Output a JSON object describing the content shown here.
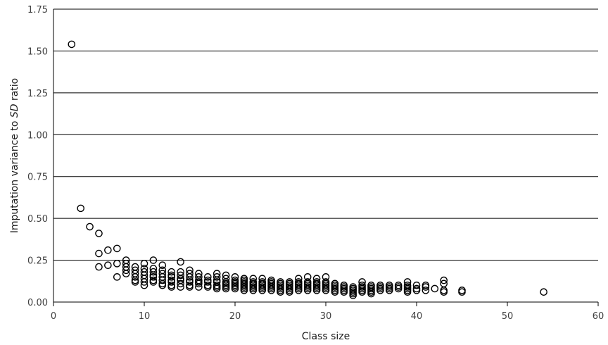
{
  "chart_data": {
    "type": "scatter",
    "title": "",
    "xlabel": "Class size",
    "ylabel_parts": [
      "Imputation variance to ",
      "SD",
      " ratio"
    ],
    "xlim": [
      0,
      60
    ],
    "ylim": [
      0,
      1.75
    ],
    "xticks": [
      0,
      10,
      20,
      30,
      40,
      50,
      60
    ],
    "yticks": [
      "0.00",
      "0.25",
      "0.50",
      "0.75",
      "1.00",
      "1.25",
      "1.50",
      "1.75"
    ],
    "grid": "horizontal",
    "legend": "none",
    "marker": "open-circle",
    "colors": {
      "marker": "#000000",
      "grid": "#000000",
      "text": "#404040"
    },
    "points": [
      [
        2,
        1.54
      ],
      [
        3,
        0.56
      ],
      [
        4,
        0.45
      ],
      [
        5,
        0.41
      ],
      [
        5,
        0.29
      ],
      [
        5,
        0.21
      ],
      [
        6,
        0.31
      ],
      [
        6,
        0.22
      ],
      [
        7,
        0.32
      ],
      [
        7,
        0.23
      ],
      [
        7,
        0.15
      ],
      [
        8,
        0.25
      ],
      [
        8,
        0.23
      ],
      [
        8,
        0.21
      ],
      [
        8,
        0.19
      ],
      [
        8,
        0.17
      ],
      [
        9,
        0.21
      ],
      [
        9,
        0.19
      ],
      [
        9,
        0.17
      ],
      [
        9,
        0.15
      ],
      [
        9,
        0.13
      ],
      [
        9,
        0.12
      ],
      [
        10,
        0.23
      ],
      [
        10,
        0.2
      ],
      [
        10,
        0.18
      ],
      [
        10,
        0.16
      ],
      [
        10,
        0.14
      ],
      [
        10,
        0.12
      ],
      [
        10,
        0.1
      ],
      [
        11,
        0.25
      ],
      [
        11,
        0.2
      ],
      [
        11,
        0.18
      ],
      [
        11,
        0.16
      ],
      [
        11,
        0.15
      ],
      [
        11,
        0.13
      ],
      [
        11,
        0.12
      ],
      [
        12,
        0.22
      ],
      [
        12,
        0.19
      ],
      [
        12,
        0.17
      ],
      [
        12,
        0.15
      ],
      [
        12,
        0.13
      ],
      [
        12,
        0.11
      ],
      [
        12,
        0.1
      ],
      [
        13,
        0.18
      ],
      [
        13,
        0.16
      ],
      [
        13,
        0.15
      ],
      [
        13,
        0.13
      ],
      [
        13,
        0.12
      ],
      [
        13,
        0.1
      ],
      [
        13,
        0.09
      ],
      [
        14,
        0.24
      ],
      [
        14,
        0.18
      ],
      [
        14,
        0.16
      ],
      [
        14,
        0.14
      ],
      [
        14,
        0.13
      ],
      [
        14,
        0.11
      ],
      [
        14,
        0.09
      ],
      [
        15,
        0.19
      ],
      [
        15,
        0.17
      ],
      [
        15,
        0.15
      ],
      [
        15,
        0.13
      ],
      [
        15,
        0.12
      ],
      [
        15,
        0.1
      ],
      [
        15,
        0.09
      ],
      [
        16,
        0.17
      ],
      [
        16,
        0.15
      ],
      [
        16,
        0.13
      ],
      [
        16,
        0.12
      ],
      [
        16,
        0.11
      ],
      [
        16,
        0.09
      ],
      [
        17,
        0.15
      ],
      [
        17,
        0.13
      ],
      [
        17,
        0.12
      ],
      [
        17,
        0.1
      ],
      [
        17,
        0.09
      ],
      [
        18,
        0.17
      ],
      [
        18,
        0.15
      ],
      [
        18,
        0.13
      ],
      [
        18,
        0.12
      ],
      [
        18,
        0.1
      ],
      [
        18,
        0.09
      ],
      [
        18,
        0.08
      ],
      [
        19,
        0.16
      ],
      [
        19,
        0.14
      ],
      [
        19,
        0.12
      ],
      [
        19,
        0.11
      ],
      [
        19,
        0.1
      ],
      [
        19,
        0.09
      ],
      [
        19,
        0.08
      ],
      [
        20,
        0.15
      ],
      [
        20,
        0.13
      ],
      [
        20,
        0.12
      ],
      [
        20,
        0.11
      ],
      [
        20,
        0.1
      ],
      [
        20,
        0.09
      ],
      [
        20,
        0.08
      ],
      [
        21,
        0.14
      ],
      [
        21,
        0.13
      ],
      [
        21,
        0.12
      ],
      [
        21,
        0.11
      ],
      [
        21,
        0.1
      ],
      [
        21,
        0.09
      ],
      [
        21,
        0.08
      ],
      [
        21,
        0.07
      ],
      [
        22,
        0.14
      ],
      [
        22,
        0.12
      ],
      [
        22,
        0.11
      ],
      [
        22,
        0.1
      ],
      [
        22,
        0.09
      ],
      [
        22,
        0.08
      ],
      [
        22,
        0.07
      ],
      [
        23,
        0.14
      ],
      [
        23,
        0.12
      ],
      [
        23,
        0.11
      ],
      [
        23,
        0.1
      ],
      [
        23,
        0.09
      ],
      [
        23,
        0.08
      ],
      [
        23,
        0.07
      ],
      [
        24,
        0.13
      ],
      [
        24,
        0.12
      ],
      [
        24,
        0.11
      ],
      [
        24,
        0.1
      ],
      [
        24,
        0.09
      ],
      [
        24,
        0.08
      ],
      [
        24,
        0.07
      ],
      [
        25,
        0.12
      ],
      [
        25,
        0.11
      ],
      [
        25,
        0.1
      ],
      [
        25,
        0.09
      ],
      [
        25,
        0.08
      ],
      [
        25,
        0.07
      ],
      [
        25,
        0.06
      ],
      [
        26,
        0.12
      ],
      [
        26,
        0.11
      ],
      [
        26,
        0.1
      ],
      [
        26,
        0.09
      ],
      [
        26,
        0.08
      ],
      [
        26,
        0.07
      ],
      [
        26,
        0.06
      ],
      [
        27,
        0.14
      ],
      [
        27,
        0.12
      ],
      [
        27,
        0.11
      ],
      [
        27,
        0.1
      ],
      [
        27,
        0.09
      ],
      [
        27,
        0.08
      ],
      [
        27,
        0.07
      ],
      [
        28,
        0.15
      ],
      [
        28,
        0.12
      ],
      [
        28,
        0.11
      ],
      [
        28,
        0.1
      ],
      [
        28,
        0.09
      ],
      [
        28,
        0.08
      ],
      [
        28,
        0.07
      ],
      [
        29,
        0.14
      ],
      [
        29,
        0.12
      ],
      [
        29,
        0.11
      ],
      [
        29,
        0.1
      ],
      [
        29,
        0.09
      ],
      [
        29,
        0.08
      ],
      [
        29,
        0.07
      ],
      [
        30,
        0.15
      ],
      [
        30,
        0.12
      ],
      [
        30,
        0.11
      ],
      [
        30,
        0.1
      ],
      [
        30,
        0.09
      ],
      [
        30,
        0.08
      ],
      [
        30,
        0.07
      ],
      [
        31,
        0.11
      ],
      [
        31,
        0.1
      ],
      [
        31,
        0.09
      ],
      [
        31,
        0.08
      ],
      [
        31,
        0.07
      ],
      [
        31,
        0.06
      ],
      [
        32,
        0.1
      ],
      [
        32,
        0.09
      ],
      [
        32,
        0.08
      ],
      [
        32,
        0.07
      ],
      [
        32,
        0.06
      ],
      [
        33,
        0.09
      ],
      [
        33,
        0.08
      ],
      [
        33,
        0.07
      ],
      [
        33,
        0.06
      ],
      [
        33,
        0.05
      ],
      [
        33,
        0.04
      ],
      [
        34,
        0.12
      ],
      [
        34,
        0.1
      ],
      [
        34,
        0.09
      ],
      [
        34,
        0.08
      ],
      [
        34,
        0.07
      ],
      [
        34,
        0.06
      ],
      [
        35,
        0.1
      ],
      [
        35,
        0.09
      ],
      [
        35,
        0.08
      ],
      [
        35,
        0.07
      ],
      [
        35,
        0.06
      ],
      [
        35,
        0.05
      ],
      [
        36,
        0.1
      ],
      [
        36,
        0.09
      ],
      [
        36,
        0.08
      ],
      [
        36,
        0.07
      ],
      [
        37,
        0.1
      ],
      [
        37,
        0.09
      ],
      [
        37,
        0.08
      ],
      [
        37,
        0.07
      ],
      [
        38,
        0.1
      ],
      [
        38,
        0.09
      ],
      [
        38,
        0.08
      ],
      [
        39,
        0.12
      ],
      [
        39,
        0.1
      ],
      [
        39,
        0.09
      ],
      [
        39,
        0.08
      ],
      [
        39,
        0.07
      ],
      [
        39,
        0.06
      ],
      [
        40,
        0.1
      ],
      [
        40,
        0.08
      ],
      [
        40,
        0.07
      ],
      [
        41,
        0.1
      ],
      [
        41,
        0.09
      ],
      [
        41,
        0.07
      ],
      [
        42,
        0.08
      ],
      [
        43,
        0.13
      ],
      [
        43,
        0.11
      ],
      [
        43,
        0.07
      ],
      [
        43,
        0.06
      ],
      [
        45,
        0.07
      ],
      [
        45,
        0.06
      ],
      [
        54,
        0.06
      ]
    ]
  }
}
